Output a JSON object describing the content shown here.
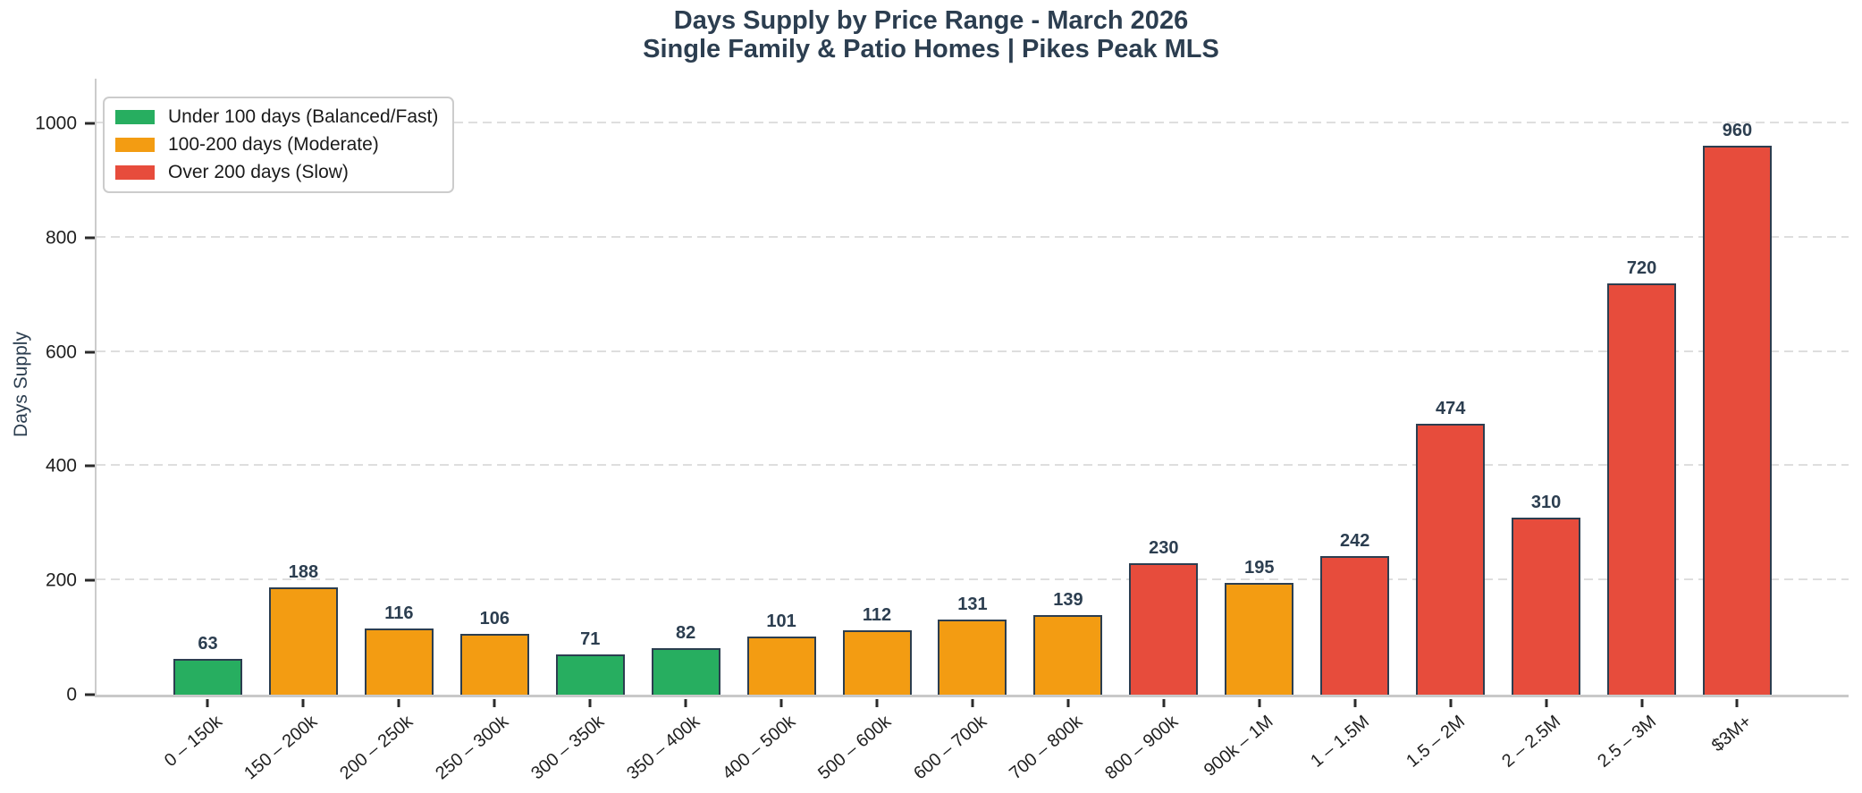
{
  "colors": {
    "green": "#27ae60",
    "orange": "#f39c12",
    "red": "#e74c3c",
    "navy": "#2c3e50"
  },
  "legend": {
    "items": [
      {
        "label": "Under 100 days (Balanced/Fast)",
        "color": "#27ae60"
      },
      {
        "label": "100-200 days (Moderate)",
        "color": "#f39c12"
      },
      {
        "label": "Over 200 days (Slow)",
        "color": "#e74c3c"
      }
    ]
  },
  "chart_data": {
    "type": "bar",
    "title": "Days Supply by Price Range - March 2026",
    "subtitle": "Single Family & Patio Homes | Pikes Peak MLS",
    "ylabel": "Days Supply",
    "xlabel": "",
    "categories": [
      "0 – 150k",
      "150 – 200k",
      "200 – 250k",
      "250 – 300k",
      "300 – 350k",
      "350 – 400k",
      "400 – 500k",
      "500 – 600k",
      "600 – 700k",
      "700 – 800k",
      "800 – 900k",
      "900k – 1M",
      "1 – 1.5M",
      "1.5 – 2M",
      "2 – 2.5M",
      "2.5 – 3M",
      "$3M+"
    ],
    "values": [
      63,
      188,
      116,
      106,
      71,
      82,
      101,
      112,
      131,
      139,
      230,
      195,
      242,
      474,
      310,
      720,
      960
    ],
    "bar_colors": [
      "green",
      "orange",
      "orange",
      "orange",
      "green",
      "green",
      "orange",
      "orange",
      "orange",
      "orange",
      "red",
      "orange",
      "red",
      "red",
      "red",
      "red",
      "red"
    ],
    "yticks": [
      0,
      200,
      400,
      600,
      800,
      1000
    ],
    "ylim": [
      0,
      1078
    ],
    "grid": "horizontal-dashed",
    "legend_position": "upper-left",
    "bar_edge_color": "#2c3e50",
    "value_label_color": "#2c3e50"
  }
}
